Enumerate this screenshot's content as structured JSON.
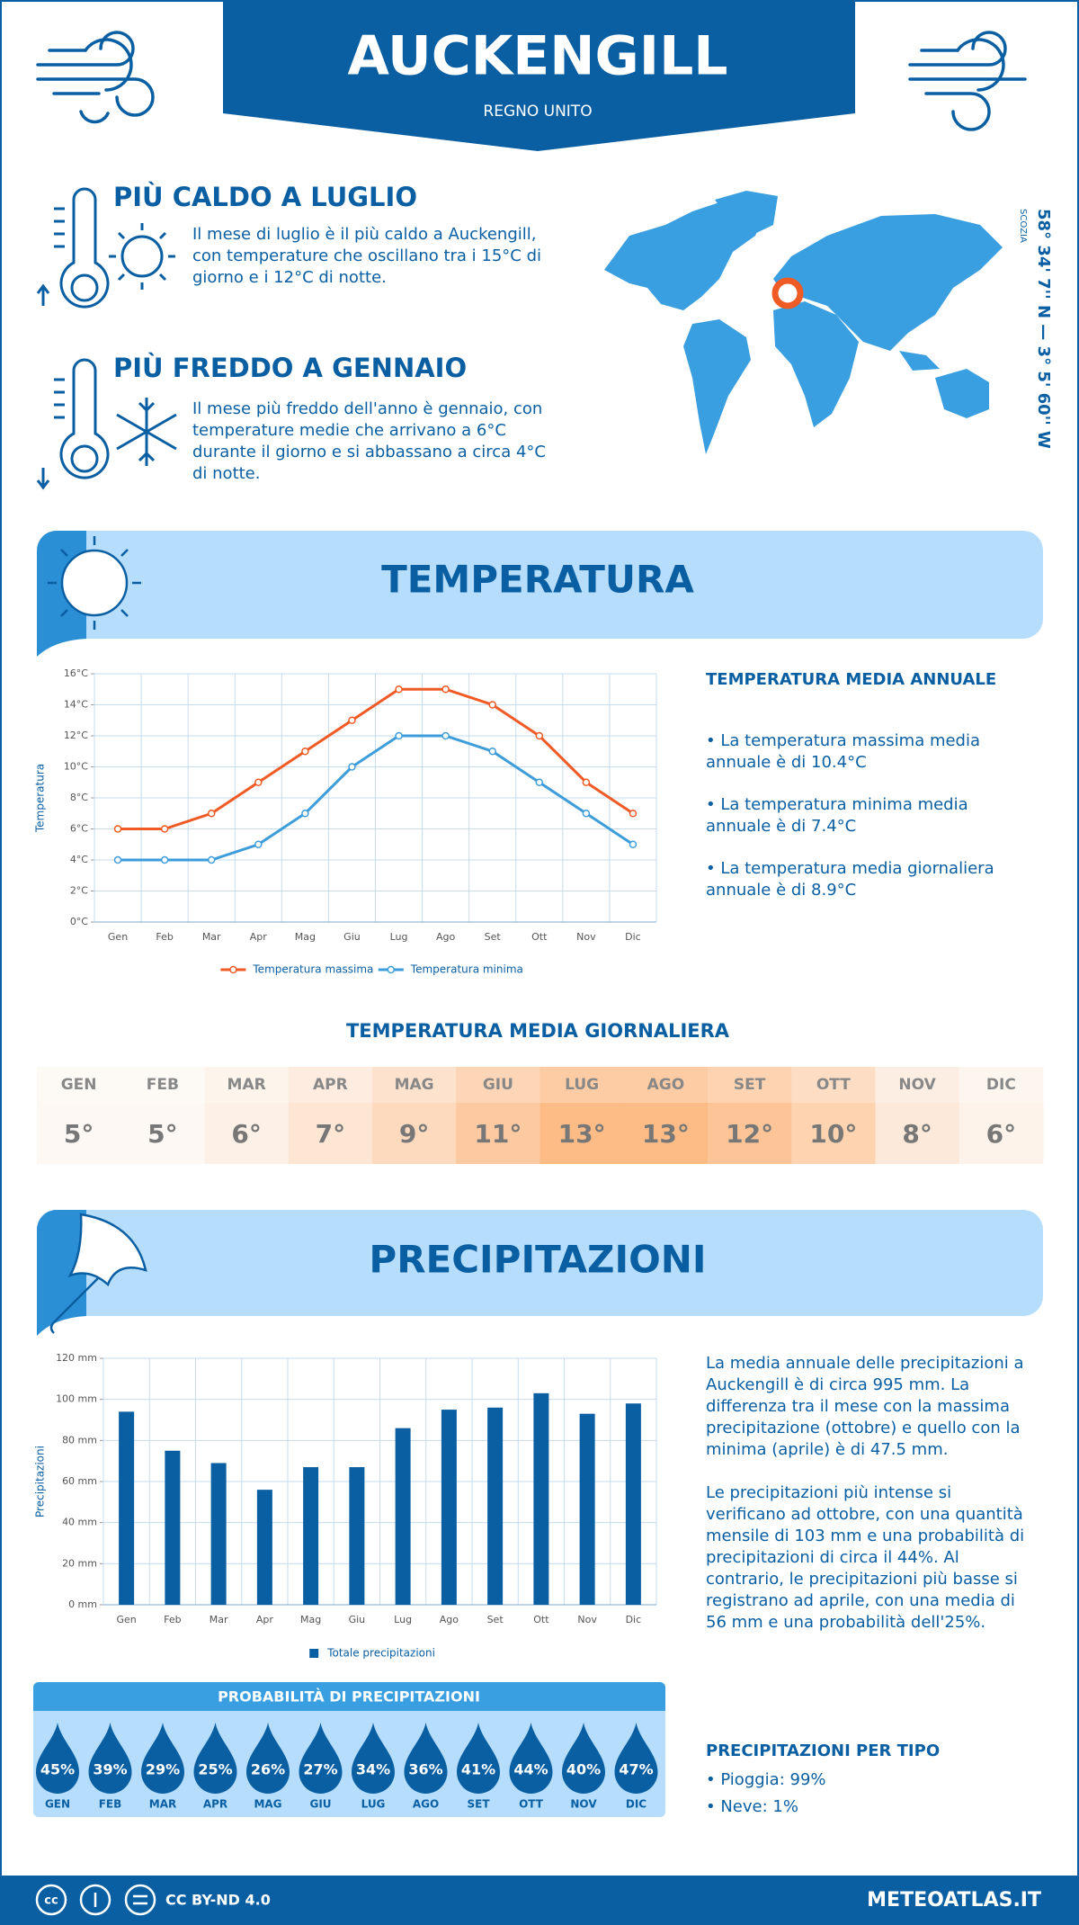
{
  "header": {
    "title": "AUCKENGILL",
    "subtitle": "REGNO UNITO"
  },
  "warmest": {
    "title": "PIÙ CALDO A LUGLIO",
    "text": "Il mese di luglio è il più caldo a Auckengill, con temperature che oscillano tra i 15°C di giorno e i 12°C di notte."
  },
  "coldest": {
    "title": "PIÙ FREDDO A GENNAIO",
    "text": "Il mese più freddo dell'anno è gennaio, con temperature medie che arrivano a 6°C durante il giorno e si abbassano a circa 4°C di notte."
  },
  "map": {
    "coordinates": "58° 34' 7'' N — 3° 5' 60'' W",
    "region": "SCOZIA"
  },
  "temperature_section": {
    "title": "TEMPERATURA"
  },
  "annual_temperature": {
    "title": "TEMPERATURA MEDIA ANNUALE",
    "items": [
      "La temperatura massima media annuale è di 10.4°C",
      "La temperatura minima media annuale è di 7.4°C",
      "La temperatura media giornaliera annuale è di 8.9°C"
    ]
  },
  "daily_temperature": {
    "title": "TEMPERATURA MEDIA GIORNALIERA",
    "months": [
      "GEN",
      "FEB",
      "MAR",
      "APR",
      "MAG",
      "GIU",
      "LUG",
      "AGO",
      "SET",
      "OTT",
      "NOV",
      "DIC"
    ],
    "values": [
      "5°",
      "5°",
      "6°",
      "7°",
      "9°",
      "11°",
      "13°",
      "13°",
      "12°",
      "10°",
      "8°",
      "6°"
    ],
    "colors": [
      "#fdf8f3",
      "#fdf8f3",
      "#fdf0e6",
      "#fde6d4",
      "#fdd9bd",
      "#fdc9a0",
      "#fdbb86",
      "#fdbb86",
      "#fdc597",
      "#fdd3b0",
      "#fde9da",
      "#fdf3ea"
    ]
  },
  "precipitation_section": {
    "title": "PRECIPITAZIONI"
  },
  "precipitation_text": [
    "La media annuale delle precipitazioni a Auckengill è di circa 995 mm. La differenza tra il mese con la massima precipitazione (ottobre) e quello con la minima (aprile) è di 47.5 mm.",
    "Le precipitazioni più intense si verificano ad ottobre, con una quantità mensile di 103 mm e una probabilità di precipitazioni di circa il 44%. Al contrario, le precipitazioni più basse si registrano ad aprile, con una media di 56 mm e una probabilità dell'25%."
  ],
  "precipitation_probability": {
    "title": "PROBABILITÀ DI PRECIPITAZIONI",
    "months": [
      "GEN",
      "FEB",
      "MAR",
      "APR",
      "MAG",
      "GIU",
      "LUG",
      "AGO",
      "SET",
      "OTT",
      "NOV",
      "DIC"
    ],
    "values": [
      "45%",
      "39%",
      "29%",
      "25%",
      "26%",
      "27%",
      "34%",
      "36%",
      "41%",
      "44%",
      "40%",
      "47%"
    ]
  },
  "precipitation_types": {
    "title": "PRECIPITAZIONI PER TIPO",
    "items": [
      "Pioggia: 99%",
      "Neve: 1%"
    ]
  },
  "footer": {
    "license": "CC BY-ND 4.0",
    "site": "METEOATLAS.IT"
  },
  "chart_data": [
    {
      "type": "line",
      "y_label": "Temperatura",
      "categories": [
        "Gen",
        "Feb",
        "Mar",
        "Apr",
        "Mag",
        "Giu",
        "Lug",
        "Ago",
        "Set",
        "Ott",
        "Nov",
        "Dic"
      ],
      "series": [
        {
          "name": "Temperatura massima",
          "color": "#f05a24",
          "values": [
            6,
            6,
            7,
            9,
            11,
            13,
            15,
            15,
            14,
            12,
            9,
            7
          ]
        },
        {
          "name": "Temperatura minima",
          "color": "#3d9ddb",
          "values": [
            4,
            4,
            4,
            5,
            7,
            10,
            12,
            12,
            11,
            9,
            7,
            5
          ]
        }
      ],
      "ylim": [
        0,
        16
      ],
      "yticks": [
        {
          "value": 0,
          "label": "0°C"
        },
        {
          "value": 2,
          "label": "2°C"
        },
        {
          "value": 4,
          "label": "4°C"
        },
        {
          "value": 6,
          "label": "6°C"
        },
        {
          "value": 8,
          "label": "8°C"
        },
        {
          "value": 10,
          "label": "10°C"
        },
        {
          "value": 12,
          "label": "12°C"
        },
        {
          "value": 14,
          "label": "14°C"
        },
        {
          "value": 16,
          "label": "16°C"
        }
      ],
      "grid": true,
      "legend": "bottom"
    },
    {
      "type": "bar",
      "y_label": "Precipitazioni",
      "categories": [
        "Gen",
        "Feb",
        "Mar",
        "Apr",
        "Mag",
        "Giu",
        "Lug",
        "Ago",
        "Set",
        "Ott",
        "Nov",
        "Dic"
      ],
      "series": [
        {
          "name": "Totale precipitazioni",
          "color": "#0a5fa3",
          "values": [
            94,
            75,
            69,
            56,
            67,
            67,
            86,
            95,
            96,
            103,
            93,
            98
          ]
        }
      ],
      "ylim": [
        0,
        120
      ],
      "yticks": [
        {
          "value": 0,
          "label": "0 mm"
        },
        {
          "value": 20,
          "label": "20 mm"
        },
        {
          "value": 40,
          "label": "40 mm"
        },
        {
          "value": 60,
          "label": "60 mm"
        },
        {
          "value": 80,
          "label": "80 mm"
        },
        {
          "value": 100,
          "label": "100 mm"
        },
        {
          "value": 120,
          "label": "120 mm"
        }
      ],
      "grid": true,
      "legend": "bottom"
    }
  ]
}
